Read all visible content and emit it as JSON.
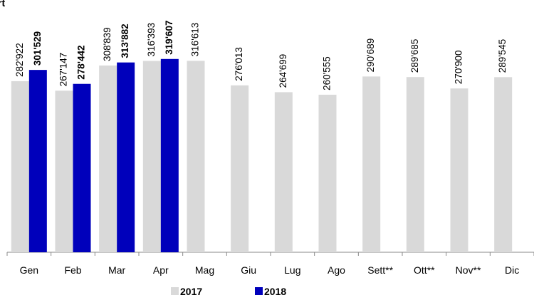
{
  "chart_data": {
    "type": "bar",
    "title": "rt",
    "categories": [
      "Gen",
      "Feb",
      "Mar",
      "Apr",
      "Mag",
      "Giu",
      "Lug",
      "Ago",
      "Sett**",
      "Ott**",
      "Nov**",
      "Dic"
    ],
    "series": [
      {
        "name": "2017",
        "color": "#d9d9d9",
        "values": [
          282922,
          267147,
          308839,
          316393,
          316613,
          276013,
          264699,
          260555,
          290689,
          289685,
          270900,
          289545
        ],
        "value_labels": [
          "282'922",
          "267'147",
          "308'839",
          "316'393",
          "316'613",
          "276'013",
          "264'699",
          "260'555",
          "290'689",
          "289'685",
          "270'900",
          "289'545"
        ]
      },
      {
        "name": "2018",
        "color": "#0000bb",
        "values": [
          301529,
          278442,
          313882,
          319607,
          null,
          null,
          null,
          null,
          null,
          null,
          null,
          null
        ],
        "value_labels": [
          "301'529",
          "278'442",
          "313'882",
          "319'607",
          null,
          null,
          null,
          null,
          null,
          null,
          null,
          null
        ]
      }
    ],
    "ylim": [
      0,
      350000
    ]
  }
}
